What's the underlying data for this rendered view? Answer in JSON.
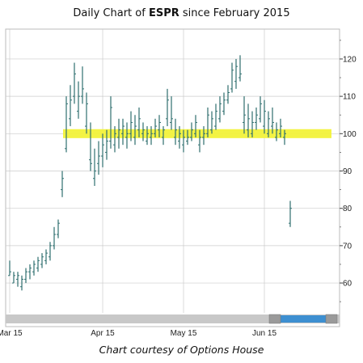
{
  "title": {
    "prefix": "Daily Chart of ",
    "ticker": "ESPR",
    "suffix": " since February 2015"
  },
  "caption": "Chart courtesy of Options House",
  "colors": {
    "bar": "#2f6f6f",
    "highlight": "#f2f23a",
    "grid": "#cccccc",
    "scrollbar_track": "#c8c8c8",
    "scrollbar_thumb": "#3d8fd1"
  },
  "chart_data": {
    "type": "ohlc",
    "title": "Daily Chart of ESPR since February 2015",
    "ylim": [
      52,
      128
    ],
    "y_ticks": [
      60,
      70,
      80,
      90,
      100,
      110,
      120
    ],
    "x_ticks": [
      {
        "label": "Mar 15",
        "index": 0
      },
      {
        "label": "Apr 15",
        "index": 23
      },
      {
        "label": "May 15",
        "index": 43
      },
      {
        "label": "Jun 15",
        "index": 63
      }
    ],
    "highlight_band": [
      98.8,
      101.2
    ],
    "grid": true,
    "bars": [
      [
        62,
        66,
        62,
        63
      ],
      [
        60,
        63,
        60,
        62
      ],
      [
        61,
        63,
        59,
        62
      ],
      [
        59,
        62,
        58,
        61
      ],
      [
        61,
        64,
        60,
        63
      ],
      [
        63,
        65,
        61,
        64
      ],
      [
        63,
        66,
        62,
        65
      ],
      [
        64,
        67,
        63,
        66
      ],
      [
        65,
        68,
        64,
        67
      ],
      [
        66,
        69,
        65,
        68
      ],
      [
        67,
        71,
        66,
        70
      ],
      [
        70,
        75,
        69,
        73
      ],
      [
        73,
        77,
        72,
        76
      ],
      [
        85,
        90,
        83,
        88
      ],
      [
        96,
        110,
        95,
        108
      ],
      [
        104,
        113,
        102,
        109
      ],
      [
        110,
        119,
        108,
        116
      ],
      [
        106,
        114,
        104,
        110
      ],
      [
        110,
        118,
        108,
        112
      ],
      [
        102,
        111,
        100,
        108
      ],
      [
        93,
        103,
        90,
        92
      ],
      [
        88,
        96,
        86,
        90
      ],
      [
        92,
        98,
        89,
        94
      ],
      [
        94,
        100,
        91,
        97
      ],
      [
        95,
        101,
        93,
        98
      ],
      [
        98,
        110,
        96,
        107
      ],
      [
        97,
        102,
        95,
        100
      ],
      [
        99,
        104,
        96,
        101
      ],
      [
        100,
        104,
        97,
        102
      ],
      [
        99,
        103,
        96,
        100
      ],
      [
        100,
        106,
        98,
        103
      ],
      [
        99,
        105,
        97,
        102
      ],
      [
        101,
        107,
        99,
        104
      ],
      [
        100,
        103,
        98,
        101
      ],
      [
        98,
        102,
        97,
        100
      ],
      [
        99,
        102,
        97,
        100
      ],
      [
        100,
        104,
        99,
        102
      ],
      [
        101,
        105,
        99,
        103
      ],
      [
        99,
        102,
        97,
        101
      ],
      [
        104,
        112,
        102,
        109
      ],
      [
        103,
        110,
        101,
        104
      ],
      [
        99,
        104,
        97,
        101
      ],
      [
        98,
        102,
        96,
        100
      ],
      [
        97,
        101,
        95,
        99
      ],
      [
        98,
        101,
        97,
        99
      ],
      [
        99,
        103,
        98,
        101
      ],
      [
        100,
        105,
        99,
        103
      ],
      [
        97,
        101,
        95,
        99
      ],
      [
        99,
        102,
        97,
        100
      ],
      [
        100,
        107,
        99,
        105
      ],
      [
        101,
        106,
        100,
        104
      ],
      [
        102,
        108,
        101,
        106
      ],
      [
        104,
        110,
        103,
        108
      ],
      [
        106,
        111,
        105,
        109
      ],
      [
        109,
        113,
        108,
        111
      ],
      [
        112,
        119,
        111,
        117
      ],
      [
        114,
        120,
        112,
        118
      ],
      [
        115,
        121,
        114,
        116
      ],
      [
        103,
        110,
        100,
        105
      ],
      [
        101,
        108,
        99,
        104
      ],
      [
        100,
        106,
        99,
        103
      ],
      [
        103,
        107,
        101,
        105
      ],
      [
        104,
        110,
        103,
        108
      ],
      [
        102,
        109,
        100,
        106
      ],
      [
        100,
        106,
        99,
        104
      ],
      [
        102,
        107,
        100,
        103
      ],
      [
        99,
        103,
        98,
        101
      ],
      [
        100,
        104,
        99,
        102
      ],
      [
        99,
        101,
        97,
        100
      ],
      [
        76,
        82,
        75,
        80
      ]
    ]
  }
}
